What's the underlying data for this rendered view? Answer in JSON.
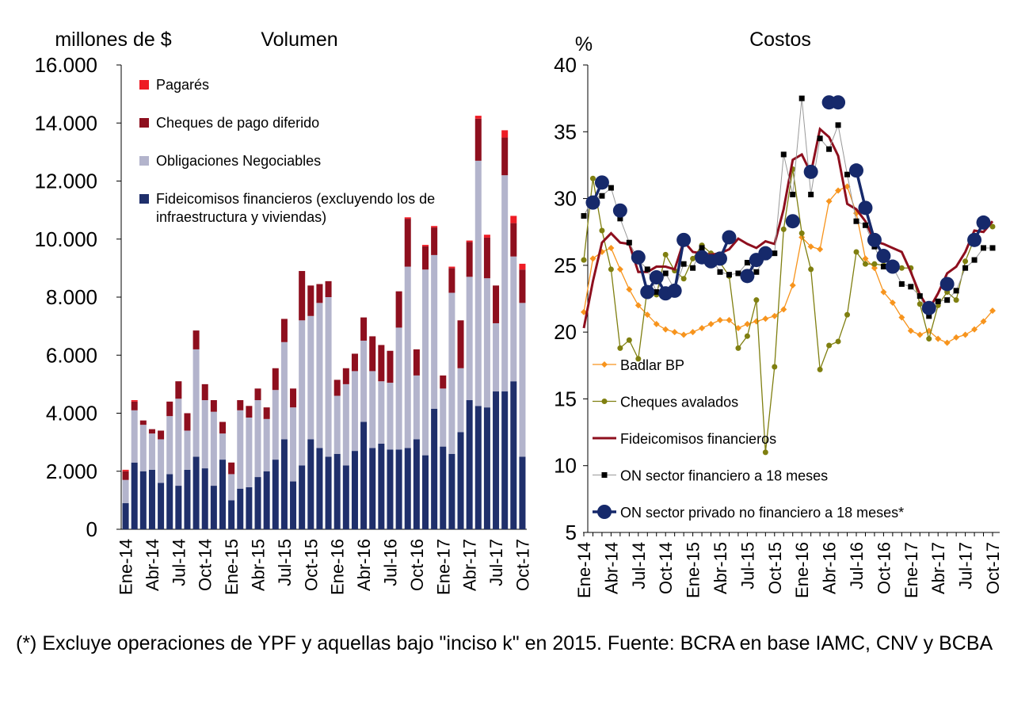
{
  "chart_data": [
    {
      "type": "bar",
      "stacked": true,
      "title": "Volumen",
      "y_label": "millones de $",
      "categories": [
        "Ene-14",
        null,
        null,
        "Abr-14",
        null,
        null,
        "Jul-14",
        null,
        null,
        "Oct-14",
        null,
        null,
        "Ene-15",
        null,
        null,
        "Abr-15",
        null,
        null,
        "Jul-15",
        null,
        null,
        "Oct-15",
        null,
        null,
        "Ene-16",
        null,
        null,
        "Abr-16",
        null,
        null,
        "Jul-16",
        null,
        null,
        "Oct-16",
        null,
        null,
        "Ene-17",
        null,
        null,
        "Abr-17",
        null,
        null,
        "Jul-17",
        null,
        null,
        "Oct-17"
      ],
      "series": [
        {
          "name": "Fideicomisos financieros (excluyendo los de infraestructura y viviendas)",
          "color": "#1f2f6b",
          "values": [
            900,
            2300,
            2000,
            2050,
            1600,
            1900,
            1500,
            2050,
            2500,
            2100,
            1500,
            2400,
            1000,
            1400,
            1450,
            1800,
            2000,
            2400,
            3100,
            1650,
            2200,
            3100,
            2800,
            2500,
            2600,
            2200,
            2700,
            3700,
            2800,
            2950,
            2750,
            2750,
            2800,
            3100,
            2550,
            4150,
            2850,
            2600,
            3350,
            4450,
            4250,
            4200,
            4750,
            4750,
            5100,
            2500
          ]
        },
        {
          "name": "Obligaciones Negociables",
          "color": "#b3b4cc",
          "values": [
            800,
            1800,
            1600,
            1250,
            1500,
            2000,
            3000,
            1350,
            3700,
            2350,
            2550,
            900,
            900,
            2700,
            2400,
            2650,
            1800,
            2400,
            3350,
            2550,
            5000,
            4250,
            5000,
            5500,
            2000,
            2800,
            2750,
            2800,
            2650,
            2150,
            2300,
            4200,
            6250,
            2200,
            6400,
            5300,
            2000,
            5550,
            2200,
            4250,
            8450,
            4450,
            2350,
            7450,
            4300,
            5300
          ]
        },
        {
          "name": "Cheques de pago diferido",
          "color": "#8e0f1e",
          "values": [
            300,
            300,
            150,
            150,
            300,
            500,
            600,
            600,
            650,
            550,
            400,
            400,
            400,
            350,
            400,
            400,
            400,
            750,
            800,
            650,
            1700,
            1050,
            650,
            550,
            550,
            550,
            600,
            800,
            1200,
            1250,
            1100,
            1250,
            1650,
            900,
            800,
            950,
            450,
            850,
            1650,
            1200,
            1450,
            1400,
            1300,
            1300,
            1150,
            1150
          ]
        },
        {
          "name": "Pagarés",
          "color": "#ee1c25",
          "values": [
            50,
            50,
            0,
            0,
            0,
            0,
            0,
            0,
            0,
            0,
            0,
            0,
            0,
            0,
            0,
            0,
            0,
            0,
            0,
            0,
            0,
            0,
            0,
            0,
            0,
            0,
            0,
            0,
            0,
            0,
            0,
            0,
            50,
            0,
            50,
            50,
            0,
            50,
            0,
            50,
            100,
            100,
            0,
            250,
            250,
            200
          ]
        }
      ],
      "ylim": [
        0,
        16000
      ],
      "yticks": [
        0,
        {
          "value": 2000,
          "label": "2.000"
        },
        {
          "value": 4000,
          "label": "4.000"
        },
        {
          "value": 6000,
          "label": "6.000"
        },
        {
          "value": 8000,
          "label": "8.000"
        },
        {
          "value": 10000,
          "label": "10.000"
        },
        {
          "value": 12000,
          "label": "12.000"
        },
        {
          "value": 14000,
          "label": "14.000"
        },
        {
          "value": 16000,
          "label": "16.000"
        }
      ],
      "legend": "top-left"
    },
    {
      "type": "line",
      "title": "Costos",
      "y_label": "%",
      "categories": [
        "Ene-14",
        null,
        null,
        "Abr-14",
        null,
        null,
        "Jul-14",
        null,
        null,
        "Oct-14",
        null,
        null,
        "Ene-15",
        null,
        null,
        "Abr-15",
        null,
        null,
        "Jul-15",
        null,
        null,
        "Oct-15",
        null,
        null,
        "Ene-16",
        null,
        null,
        "Abr-16",
        null,
        null,
        "Jul-16",
        null,
        null,
        "Oct-16",
        null,
        null,
        "Ene-17",
        null,
        null,
        "Abr-17",
        null,
        null,
        "Jul-17",
        null,
        null,
        "Oct-17"
      ],
      "series": [
        {
          "name": "Badlar BP",
          "color": "#f7941d",
          "marker": "diamond",
          "values": [
            21.5,
            25.5,
            26.0,
            26.3,
            24.7,
            23.2,
            22.0,
            21.3,
            20.6,
            20.2,
            20.0,
            19.8,
            20.0,
            20.3,
            20.6,
            20.9,
            20.9,
            20.3,
            20.6,
            20.8,
            21.0,
            21.2,
            21.7,
            23.5,
            27.1,
            26.4,
            26.2,
            29.8,
            30.6,
            30.9,
            28.9,
            25.5,
            24.8,
            23.0,
            22.2,
            21.1,
            20.1,
            19.8,
            20.1,
            19.5,
            19.2,
            19.6,
            19.8,
            20.2,
            20.8,
            21.6
          ]
        },
        {
          "name": "Cheques avalados",
          "color": "#7f7f10",
          "marker": "circle",
          "values": [
            25.4,
            31.5,
            27.6,
            24.7,
            18.8,
            19.4,
            18.0,
            23.3,
            22.8,
            25.8,
            24.6,
            24.0,
            25.5,
            26.5,
            25.9,
            25.2,
            24.2,
            18.8,
            19.7,
            22.4,
            11.0,
            17.4,
            27.7,
            32.2,
            27.4,
            24.7,
            17.2,
            19.0,
            19.3,
            21.3,
            26.0,
            25.1,
            25.1,
            25.0,
            24.9,
            24.8,
            24.8,
            22.1,
            19.5,
            22.0,
            23.0,
            22.4,
            25.3,
            27.0,
            28.0,
            27.9
          ]
        },
        {
          "name": "Fideicomisos financieros",
          "color": "#8e0f1e",
          "marker": "none",
          "values": [
            20.3,
            23.8,
            26.7,
            27.4,
            26.7,
            26.6,
            24.5,
            24.5,
            24.9,
            24.9,
            24.7,
            26.8,
            26.0,
            25.9,
            25.8,
            25.9,
            26.2,
            27.0,
            26.6,
            26.3,
            26.8,
            26.6,
            29.2,
            32.9,
            33.3,
            31.9,
            35.2,
            34.6,
            33.2,
            29.6,
            29.2,
            28.3,
            26.8,
            26.6,
            26.3,
            26.0,
            24.5,
            22.8,
            21.7,
            22.9,
            24.4,
            24.9,
            26.0,
            27.6,
            27.5,
            28.3
          ]
        },
        {
          "name": "ON sector financiero a 18 meses",
          "color": "#999999",
          "marker_color": "#000000",
          "marker": "square",
          "values": [
            28.7,
            30.0,
            30.2,
            30.8,
            28.5,
            26.7,
            25.4,
            24.7,
            23.0,
            24.4,
            23.2,
            25.1,
            24.8,
            26.3,
            25.6,
            24.5,
            24.3,
            24.4,
            25.2,
            24.5,
            25.6,
            25.9,
            33.3,
            30.3,
            37.5,
            30.3,
            34.5,
            33.7,
            35.5,
            31.8,
            28.3,
            28.0,
            26.4,
            24.9,
            24.9,
            23.6,
            23.4,
            22.7,
            21.2,
            22.3,
            22.4,
            23.1,
            24.8,
            25.4,
            26.3,
            26.3
          ]
        },
        {
          "name": "ON sector privado no financiero a 18 meses*",
          "color": "#16296b",
          "marker": "big-circle",
          "values": [
            null,
            29.7,
            31.2,
            null,
            29.1,
            null,
            25.6,
            23.0,
            24.1,
            22.9,
            23.1,
            26.9,
            null,
            25.6,
            25.3,
            25.5,
            27.1,
            null,
            24.2,
            25.4,
            25.9,
            null,
            null,
            28.3,
            null,
            32.0,
            null,
            37.2,
            37.2,
            null,
            32.1,
            29.3,
            26.9,
            25.7,
            24.9,
            null,
            null,
            null,
            21.8,
            null,
            23.6,
            null,
            null,
            26.9,
            28.2,
            null
          ]
        }
      ],
      "ylim": [
        5,
        40
      ],
      "yticks": [
        5,
        10,
        15,
        20,
        25,
        30,
        35,
        40
      ],
      "legend": "bottom-left"
    }
  ],
  "footnote": "(*) Excluye operaciones de YPF y aquellas bajo \"inciso k\" en 2015. Fuente: BCRA en base IAMC, CNV y BCBA"
}
